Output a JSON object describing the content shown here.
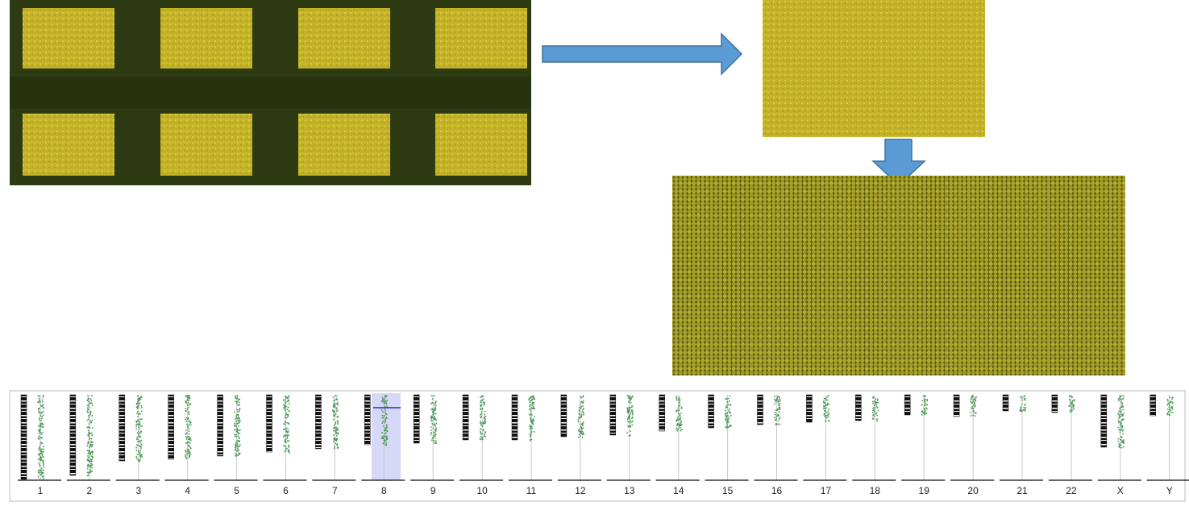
{
  "karyogram": {
    "chromosome_labels": [
      "1",
      "2",
      "3",
      "4",
      "5",
      "6",
      "7",
      "8",
      "9",
      "10",
      "11",
      "12",
      "13",
      "14",
      "15",
      "16",
      "17",
      "18",
      "19",
      "20",
      "21",
      "22",
      "X",
      "Y"
    ]
  }
}
